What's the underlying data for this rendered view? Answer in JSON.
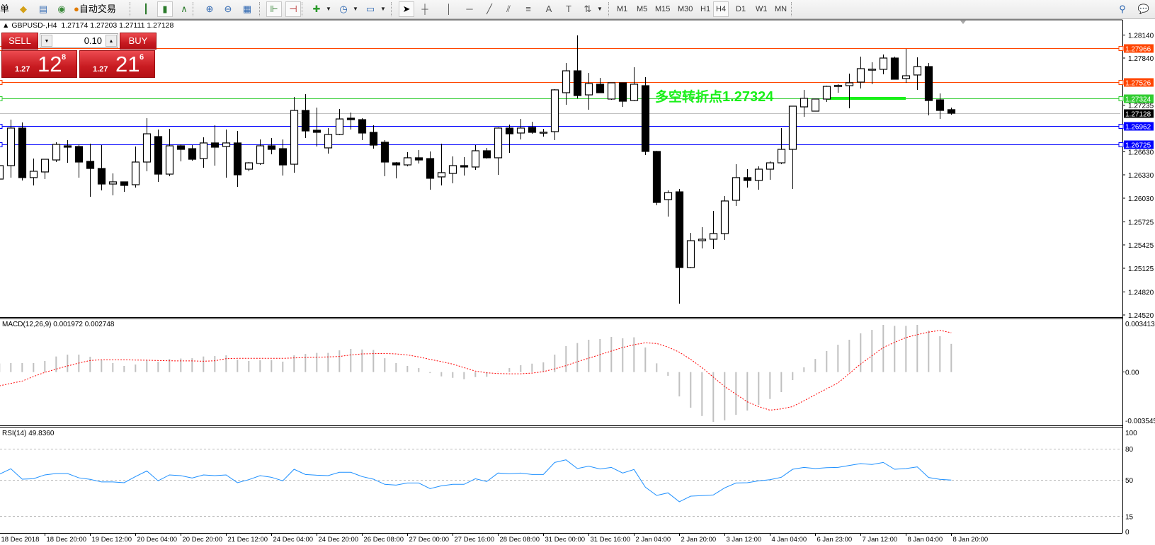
{
  "toolbar": {
    "partial_menu_text": "单",
    "autotrading_label": "自动交易",
    "timeframes": [
      "M1",
      "M5",
      "M15",
      "M30",
      "H1",
      "H4",
      "D1",
      "W1",
      "MN"
    ],
    "active_timeframe": "H4"
  },
  "chart": {
    "symbol_header": "GBPUSD-,H4  1.27174 1.27203 1.27111 1.27128",
    "annotation_text": "多空转折点",
    "annotation_value": "1.27324",
    "annotation_color": "#19f019"
  },
  "trade_panel": {
    "sell_label": "SELL",
    "buy_label": "BUY",
    "lot_value": "0.10",
    "sell_price": {
      "prefix": "1.27",
      "big": "12",
      "sup": "8"
    },
    "buy_price": {
      "prefix": "1.27",
      "big": "21",
      "sup": "6"
    }
  },
  "chart_data": {
    "type": "candlestick",
    "symbol": "GBPUSD-",
    "timeframe": "H4",
    "price_axis_labels": [
      "1.28140",
      "1.27840",
      "1.27235",
      "1.26630",
      "1.26330",
      "1.26030",
      "1.25725",
      "1.25425",
      "1.25125",
      "1.24820",
      "1.24520"
    ],
    "price_lines": [
      {
        "price": "1.27966",
        "color": "#ff4500"
      },
      {
        "price": "1.27526",
        "color": "#ff4500"
      },
      {
        "price": "1.27324",
        "color": "#32cd32"
      },
      {
        "price": "1.27128",
        "color": "#000000",
        "line_color": "#c0c0c0"
      },
      {
        "price": "1.26962",
        "color": "#0000ff"
      },
      {
        "price": "1.26725",
        "color": "#0000ff"
      }
    ],
    "ohlc": [
      [
        1.26277,
        1.26506,
        1.26277,
        1.26451
      ],
      [
        1.26451,
        1.27045,
        1.26296,
        1.26936
      ],
      [
        1.26936,
        1.27009,
        1.26259,
        1.26296
      ],
      [
        1.26296,
        1.26542,
        1.26195,
        1.26378
      ],
      [
        1.26369,
        1.26533,
        1.26277,
        1.26533
      ],
      [
        1.26524,
        1.26753,
        1.26497,
        1.26725
      ],
      [
        1.26707,
        1.2678,
        1.26487,
        1.26689
      ],
      [
        1.26698,
        1.26725,
        1.26296,
        1.26497
      ],
      [
        1.26506,
        1.26734,
        1.26049,
        1.26414
      ],
      [
        1.26414,
        1.26716,
        1.26131,
        1.26213
      ],
      [
        1.26213,
        1.2635,
        1.26067,
        1.26241
      ],
      [
        1.26241,
        1.26241,
        1.26112,
        1.26195
      ],
      [
        1.26204,
        1.26698,
        1.26167,
        1.26497
      ],
      [
        1.26497,
        1.27064,
        1.26378,
        1.26862
      ],
      [
        1.26826,
        1.26917,
        1.26241,
        1.26341
      ],
      [
        1.26341,
        1.26927,
        1.26314,
        1.26707
      ],
      [
        1.26707,
        1.26725,
        1.26506,
        1.26661
      ],
      [
        1.2667,
        1.26716,
        1.26515,
        1.26533
      ],
      [
        1.26542,
        1.26817,
        1.26424,
        1.26744
      ],
      [
        1.26744,
        1.26972,
        1.26451,
        1.26689
      ],
      [
        1.26698,
        1.26917,
        1.26296,
        1.26744
      ],
      [
        1.26744,
        1.26899,
        1.26177,
        1.26332
      ],
      [
        1.26405,
        1.26497,
        1.26378,
        1.26487
      ],
      [
        1.26478,
        1.26789,
        1.2646,
        1.26707
      ],
      [
        1.26707,
        1.26808,
        1.26597,
        1.26661
      ],
      [
        1.2667,
        1.26789,
        1.26323,
        1.2646
      ],
      [
        1.26469,
        1.27338,
        1.2636,
        1.27164
      ],
      [
        1.27164,
        1.27375,
        1.26808,
        1.26899
      ],
      [
        1.26908,
        1.27201,
        1.26698,
        1.26881
      ],
      [
        1.2668,
        1.26936,
        1.26606,
        1.26853
      ],
      [
        1.26853,
        1.27183,
        1.26844,
        1.27054
      ],
      [
        1.27064,
        1.27137,
        1.26917,
        1.27045
      ],
      [
        1.27045,
        1.27064,
        1.2678,
        1.26872
      ],
      [
        1.26881,
        1.26972,
        1.2667,
        1.26716
      ],
      [
        1.26753,
        1.2678,
        1.26314,
        1.26497
      ],
      [
        1.26487,
        1.26497,
        1.26287,
        1.2646
      ],
      [
        1.2646,
        1.26625,
        1.26442,
        1.26552
      ],
      [
        1.26552,
        1.26652,
        1.26478,
        1.26524
      ],
      [
        1.26542,
        1.26634,
        1.2614,
        1.26287
      ],
      [
        1.26305,
        1.26734,
        1.26195,
        1.2636
      ],
      [
        1.2635,
        1.2657,
        1.26222,
        1.26451
      ],
      [
        1.26451,
        1.26561,
        1.26323,
        1.26433
      ],
      [
        1.26433,
        1.26716,
        1.26396,
        1.26643
      ],
      [
        1.26643,
        1.2668,
        1.26542,
        1.26552
      ],
      [
        1.26552,
        1.26945,
        1.26332,
        1.26936
      ],
      [
        1.26936,
        1.26981,
        1.26616,
        1.26862
      ],
      [
        1.26872,
        1.27054,
        1.26789,
        1.26936
      ],
      [
        1.26945,
        1.27018,
        1.26862,
        1.26881
      ],
      [
        1.26881,
        1.26927,
        1.26826,
        1.26884
      ],
      [
        1.2689,
        1.27439,
        1.2678,
        1.2743
      ],
      [
        1.27393,
        1.27777,
        1.27237,
        1.27676
      ],
      [
        1.27676,
        1.28134,
        1.2732,
        1.27356
      ],
      [
        1.27365,
        1.27649,
        1.27173,
        1.27512
      ],
      [
        1.27503,
        1.27585,
        1.27393,
        1.27393
      ],
      [
        1.27311,
        1.27521,
        1.27301,
        1.27521
      ],
      [
        1.27521,
        1.27521,
        1.2721,
        1.27283
      ],
      [
        1.27292,
        1.27722,
        1.27283,
        1.27503
      ],
      [
        1.27484,
        1.27594,
        1.26588,
        1.26634
      ],
      [
        1.26634,
        1.26643,
        1.25939,
        1.25975
      ],
      [
        1.26012,
        1.26131,
        1.25792,
        1.26103
      ],
      [
        1.26112,
        1.26149,
        1.24667,
        1.25134
      ],
      [
        1.25134,
        1.25582,
        1.25125,
        1.25481
      ],
      [
        1.25481,
        1.25655,
        1.25381,
        1.255
      ],
      [
        1.255,
        1.25865,
        1.25372,
        1.25573
      ],
      [
        1.25573,
        1.26058,
        1.25491,
        1.25994
      ],
      [
        1.26003,
        1.26469,
        1.25929,
        1.26296
      ],
      [
        1.26296,
        1.26405,
        1.26167,
        1.26259
      ],
      [
        1.26259,
        1.26442,
        1.2614,
        1.26405
      ],
      [
        1.26405,
        1.26506,
        1.26268,
        1.26487
      ],
      [
        1.26487,
        1.26936,
        1.26469,
        1.26661
      ],
      [
        1.26661,
        1.27219,
        1.26149,
        1.27219
      ],
      [
        1.2721,
        1.2743,
        1.27082,
        1.2732
      ],
      [
        1.27155,
        1.27311,
        1.27155,
        1.27311
      ],
      [
        1.27311,
        1.27484,
        1.27274,
        1.27475
      ],
      [
        1.27484,
        1.27503,
        1.27393,
        1.27487
      ],
      [
        1.27484,
        1.2764,
        1.27192,
        1.27521
      ],
      [
        1.2753,
        1.27859,
        1.27448,
        1.27704
      ],
      [
        1.27695,
        1.27786,
        1.27503,
        1.27698
      ],
      [
        1.27695,
        1.27887,
        1.27631,
        1.27841
      ],
      [
        1.27841,
        1.27859,
        1.27567,
        1.27567
      ],
      [
        1.27576,
        1.2796,
        1.27521,
        1.27612
      ],
      [
        1.27622,
        1.2785,
        1.2743,
        1.27731
      ],
      [
        1.27731,
        1.27777,
        1.271,
        1.27292
      ],
      [
        1.27301,
        1.27384,
        1.27054,
        1.27164
      ],
      [
        1.27174,
        1.27203,
        1.27111,
        1.27128
      ]
    ],
    "time_labels": [
      "18 Dec 2018",
      "18 Dec 20:00",
      "19 Dec 12:00",
      "20 Dec 04:00",
      "20 Dec 20:00",
      "21 Dec 12:00",
      "24 Dec 04:00",
      "24 Dec 20:00",
      "26 Dec 08:00",
      "27 Dec 00:00",
      "27 Dec 16:00",
      "28 Dec 08:00",
      "31 Dec 00:00",
      "31 Dec 16:00",
      "2 Jan 04:00",
      "2 Jan 20:00",
      "3 Jan 12:00",
      "4 Jan 04:00",
      "6 Jan 23:00",
      "7 Jan 12:00",
      "8 Jan 04:00",
      "8 Jan 20:00"
    ],
    "macd": {
      "label": "MACD(12,26,9) 0.001972 0.002748",
      "axis_labels": [
        "0.003413",
        "0.00",
        "-0.003545"
      ],
      "range": [
        -0.003545,
        0.003413
      ],
      "histogram_color": "#c0c0c0",
      "signal_color": "#ff0000",
      "histogram": [
        0.0006,
        0.00063,
        0.00063,
        0.00063,
        0.00078,
        0.00109,
        0.00122,
        0.00122,
        0.00107,
        0.00084,
        0.00063,
        0.00043,
        0.00053,
        0.00086,
        0.00073,
        0.00092,
        0.00095,
        0.00097,
        0.00109,
        0.00112,
        0.00117,
        0.00087,
        0.00078,
        0.00083,
        0.00084,
        0.00073,
        0.00117,
        0.00127,
        0.00134,
        0.00134,
        0.00152,
        0.00162,
        0.00158,
        0.00155,
        0.00097,
        0.00063,
        0.00043,
        0.00028,
        -7e-05,
        -0.0003,
        -0.0004,
        -0.0005,
        -0.00035,
        -0.00033,
        3e-05,
        0.00028,
        0.00048,
        0.00059,
        0.00068,
        0.00122,
        0.00182,
        0.00203,
        0.00226,
        0.00231,
        0.00246,
        0.00236,
        0.00243,
        0.00172,
        0.00061,
        -0.00026,
        -0.0017,
        -0.00249,
        -0.00307,
        -0.00348,
        -0.00337,
        -0.00299,
        -0.00269,
        -0.00229,
        -0.00188,
        -0.0014,
        -0.00056,
        0.00033,
        0.00092,
        0.00147,
        0.00191,
        0.00226,
        0.00271,
        0.00295,
        0.0033,
        0.00323,
        0.00323,
        0.0033,
        0.0029,
        0.00251,
        0.001972
      ],
      "signal": [
        -0.00096,
        -0.00079,
        -0.00063,
        -0.00031,
        -2e-05,
        0.00021,
        0.00043,
        0.00063,
        0.00081,
        0.00086,
        0.00086,
        0.00086,
        0.00084,
        0.00083,
        0.00081,
        0.00079,
        0.00078,
        0.00078,
        0.00076,
        0.00079,
        0.00094,
        0.00096,
        0.00096,
        0.00096,
        0.00096,
        0.00096,
        0.00099,
        0.00102,
        0.00104,
        0.00106,
        0.00109,
        0.0012,
        0.00127,
        0.00129,
        0.0013,
        0.00127,
        0.0012,
        0.00106,
        0.00089,
        0.00073,
        0.00056,
        0.00031,
        7e-05,
        -5e-05,
        -0.0001,
        -0.00012,
        -0.00012,
        -7e-05,
        3e-05,
        0.00023,
        0.00045,
        0.00073,
        0.00097,
        0.00122,
        0.00147,
        0.00172,
        0.00191,
        0.00205,
        0.002,
        0.00175,
        0.00139,
        0.00089,
        0.00031,
        -0.00035,
        -0.00101,
        -0.00155,
        -0.00208,
        -0.00241,
        -0.00266,
        -0.00257,
        -0.00241,
        -0.002,
        -0.00158,
        -0.00117,
        -0.00076,
        -0.0001,
        0.00056,
        0.00114,
        0.00172,
        0.00208,
        0.00241,
        0.00262,
        0.00279,
        0.00292,
        0.002748
      ]
    },
    "rsi": {
      "label": "RSI(14) 49.8360",
      "axis_labels": [
        "100",
        "80",
        "50",
        "15",
        "0"
      ],
      "levels": [
        80,
        50,
        15
      ],
      "range": [
        0,
        100
      ],
      "color": "#1e90ff",
      "values": [
        55.5,
        60.7,
        50.7,
        51.1,
        54.8,
        56.1,
        56.1,
        52.0,
        50.5,
        48.0,
        48.0,
        47.3,
        53.2,
        58.6,
        49.1,
        54.8,
        54.1,
        51.8,
        54.8,
        54.1,
        54.8,
        47.3,
        50.2,
        54.1,
        52.5,
        49.1,
        60.2,
        55.2,
        54.5,
        54.1,
        57.3,
        57.3,
        53.2,
        50.7,
        45.7,
        45.0,
        47.0,
        47.0,
        41.6,
        44.3,
        45.7,
        45.7,
        51.1,
        48.4,
        56.6,
        55.9,
        56.6,
        55.2,
        55.2,
        66.8,
        69.3,
        60.9,
        63.2,
        60.5,
        62.0,
        56.6,
        60.0,
        43.0,
        35.0,
        37.5,
        28.9,
        34.3,
        34.8,
        35.5,
        42.3,
        47.0,
        47.3,
        49.1,
        50.2,
        52.5,
        60.2,
        62.0,
        60.9,
        61.8,
        62.0,
        63.9,
        65.7,
        64.8,
        66.8,
        60.2,
        60.9,
        62.5,
        52.3,
        50.5,
        49.836
      ]
    }
  }
}
